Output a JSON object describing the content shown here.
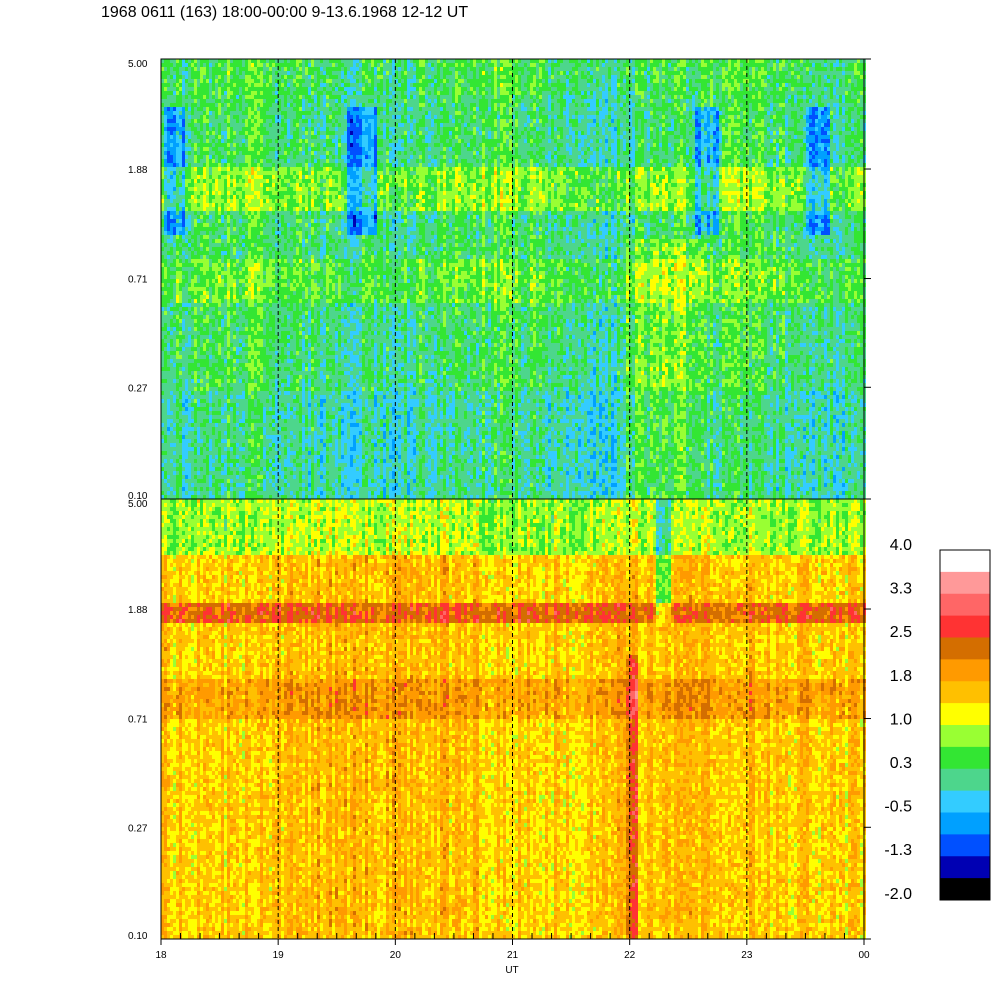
{
  "chart_data": {
    "type": "heatmap",
    "title": "1968 0611 (163) 18:00-00:00 9-13.6.1968  12-12 UT",
    "xlabel": "UT",
    "x_ticks": [
      "18",
      "19",
      "20",
      "21",
      "22",
      "23",
      "00"
    ],
    "x_range_hours": [
      18,
      24
    ],
    "dashed_gridlines_at_hours": [
      19,
      20,
      21,
      22,
      23
    ],
    "y_scale": "log",
    "panels": [
      {
        "y_ticks": [
          "5.00",
          "1.88",
          "0.71",
          "0.27",
          "0.10"
        ],
        "y_range": [
          0.1,
          5.0
        ],
        "dominant_level": "green / cyan (about -0.5 to 1.0)"
      },
      {
        "y_ticks": [
          "5.00",
          "1.88",
          "0.71",
          "0.27",
          "0.10"
        ],
        "y_range": [
          0.1,
          5.0
        ],
        "dominant_level": "orange / yellow (about 1.0 to 2.5), dark orange band near 1.88"
      }
    ],
    "colorbar": {
      "labels": [
        "4.0",
        "3.3",
        "2.5",
        "1.8",
        "1.0",
        "0.3",
        "-0.5",
        "-1.3",
        "-2.0"
      ],
      "colors": [
        "#ffffff",
        "#ff9999",
        "#ff6666",
        "#ff3333",
        "#d46e00",
        "#ff9a00",
        "#ffc000",
        "#ffff00",
        "#99ff33",
        "#33e633",
        "#4dd68c",
        "#33ccff",
        "#00a0ff",
        "#0050ff",
        "#0000b3",
        "#000000"
      ]
    }
  }
}
